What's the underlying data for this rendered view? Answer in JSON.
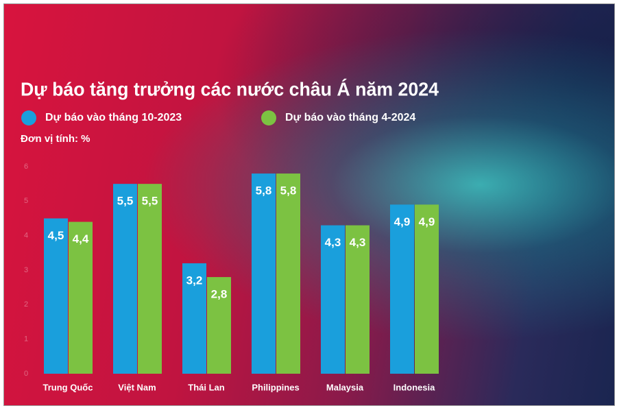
{
  "chart_data": {
    "type": "bar",
    "title": "Dự báo tăng trưởng các nước châu Á năm 2024",
    "subtitle": "Đơn vị tính: %",
    "categories": [
      "Trung Quốc",
      "Việt Nam",
      "Thái Lan",
      "Philippines",
      "Malaysia",
      "Indonesia"
    ],
    "series": [
      {
        "name": "Dự báo vào tháng 10-2023",
        "color": "#1a9fdc",
        "values": [
          4.5,
          5.5,
          3.2,
          5.8,
          4.3,
          4.9
        ],
        "value_labels": [
          "4,5",
          "5,5",
          "3,2",
          "5,8",
          "4,3",
          "4,9"
        ]
      },
      {
        "name": "Dự báo vào tháng 4-2024",
        "color": "#7cc242",
        "values": [
          4.4,
          5.5,
          2.8,
          5.8,
          4.3,
          4.9
        ],
        "value_labels": [
          "4,4",
          "5,5",
          "2,8",
          "5,8",
          "4,3",
          "4,9"
        ]
      }
    ],
    "ylim": [
      0,
      6
    ],
    "yticks": [
      0,
      1,
      2,
      3,
      4,
      5,
      6
    ],
    "grid": false
  }
}
